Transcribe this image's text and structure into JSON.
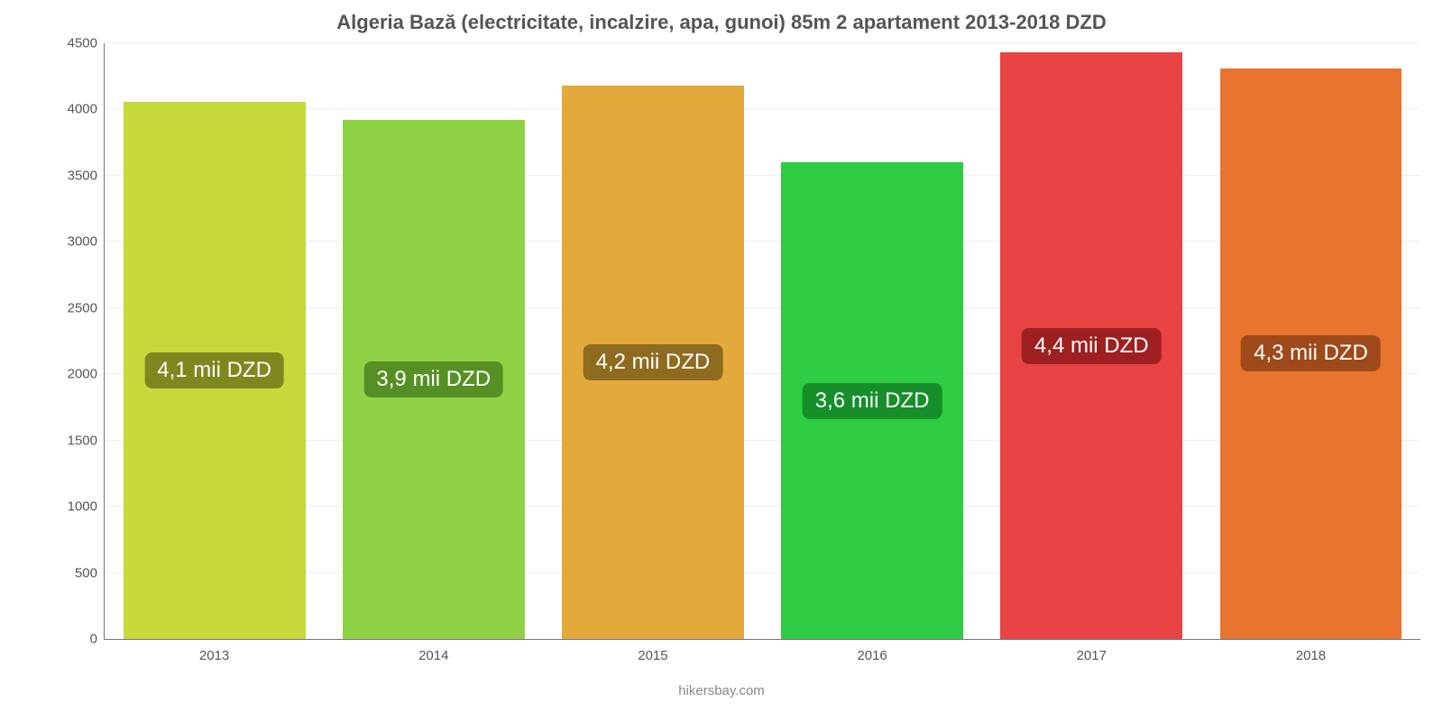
{
  "chart": {
    "type": "bar",
    "title": "Algeria Bază (electricitate, incalzire, apa, gunoi) 85m 2 apartament 2013-2018 DZD",
    "title_fontsize": 22,
    "title_color": "#555555",
    "background_color": "#ffffff",
    "grid_color": "rgba(120,120,120,0.13)",
    "axis_color": "#777777",
    "tick_label_color": "#555555",
    "tick_label_fontsize": 15,
    "bar_label_fontsize": 24,
    "bar_label_text_color": "#ffffff",
    "bar_width": 0.83,
    "ylim": [
      0,
      4500
    ],
    "ytick_step": 500,
    "yticks": [
      {
        "v": 0,
        "label": "0"
      },
      {
        "v": 500,
        "label": "500"
      },
      {
        "v": 1000,
        "label": "1000"
      },
      {
        "v": 1500,
        "label": "1500"
      },
      {
        "v": 2000,
        "label": "2000"
      },
      {
        "v": 2500,
        "label": "2500"
      },
      {
        "v": 3000,
        "label": "3000"
      },
      {
        "v": 3500,
        "label": "3500"
      },
      {
        "v": 4000,
        "label": "4000"
      },
      {
        "v": 4500,
        "label": "4500"
      }
    ],
    "categories": [
      "2013",
      "2014",
      "2015",
      "2016",
      "2017",
      "2018"
    ],
    "values": [
      4060,
      3920,
      4180,
      3600,
      4430,
      4310
    ],
    "bar_colors": [
      "#c7d83a",
      "#8fd245",
      "#e3a93b",
      "#2ecc43",
      "#e84444",
      "#e8742f"
    ],
    "bar_badges": [
      "4,1 mii DZD",
      "3,9 mii DZD",
      "4,2 mii DZD",
      "3,6 mii DZD",
      "4,4 mii DZD",
      "4,3 mii DZD"
    ],
    "bar_badge_bg": [
      "#7e881f",
      "#568f24",
      "#8f6b1f",
      "#168f2b",
      "#9f2020",
      "#9f4a1a"
    ],
    "footer": "hikersbay.com",
    "footer_color": "#888888"
  }
}
